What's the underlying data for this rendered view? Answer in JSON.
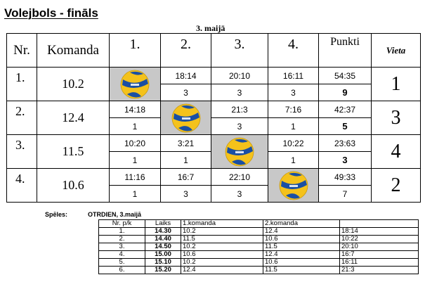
{
  "title": "Volejbols - fināls",
  "date_header": "3. maijā",
  "headers": {
    "nr": "Nr.",
    "team": "Komanda",
    "cols": [
      "1.",
      "2.",
      "3.",
      "4."
    ],
    "points": "Punkti",
    "place": "Vieta"
  },
  "rows": [
    {
      "nr": "1.",
      "team": "10.2",
      "games": [
        null,
        {
          "score": "18:14",
          "pts": "3"
        },
        {
          "score": "20:10",
          "pts": "3"
        },
        {
          "score": "16:11",
          "pts": "3"
        }
      ],
      "total_score": "54:35",
      "total_pts": "9",
      "place": "1"
    },
    {
      "nr": "2.",
      "team": "12.4",
      "games": [
        {
          "score": "14:18",
          "pts": "1"
        },
        null,
        {
          "score": "21:3",
          "pts": "3"
        },
        {
          "score": "7:16",
          "pts": "1"
        }
      ],
      "total_score": "42:37",
      "total_pts": "5",
      "place": "3"
    },
    {
      "nr": "3.",
      "team": "11.5",
      "games": [
        {
          "score": "10:20",
          "pts": "1"
        },
        {
          "score": "3:21",
          "pts": "1"
        },
        null,
        {
          "score": "10:22",
          "pts": "1"
        }
      ],
      "total_score": "23:63",
      "total_pts": "3",
      "place": "4"
    },
    {
      "nr": "4.",
      "team": "10.6",
      "games": [
        {
          "score": "11:16",
          "pts": "1"
        },
        {
          "score": "16:7",
          "pts": "3"
        },
        {
          "score": "22:10",
          "pts": "3"
        },
        null
      ],
      "total_score": "49:33",
      "total_pts": "7",
      "place": "2"
    }
  ],
  "bold_totals": [
    true,
    true,
    true,
    false
  ],
  "ball_icon": "volleyball-icon",
  "ball_colors": {
    "yellow": "#f4c21b",
    "blue": "#1a4fa3"
  },
  "schedule": {
    "label": "Spēles:",
    "day": "OTRDIEN, 3.maijā",
    "headers": [
      "Nr. p/k",
      "Laiks",
      "1.komanda",
      "2.komanda",
      ""
    ],
    "rows": [
      [
        "1.",
        "14.30",
        "10.2",
        "12.4",
        "18:14"
      ],
      [
        "2.",
        "14.40",
        "11.5",
        "10.6",
        "10:22"
      ],
      [
        "3.",
        "14.50",
        "10.2",
        "11.5",
        "20:10"
      ],
      [
        "4.",
        "15.00",
        "10.6",
        "12.4",
        "16:7"
      ],
      [
        "5.",
        "15.10",
        "10.2",
        "10.6",
        "16:11"
      ],
      [
        "6.",
        "15.20",
        "12.4",
        "11.5",
        "21:3"
      ]
    ]
  }
}
